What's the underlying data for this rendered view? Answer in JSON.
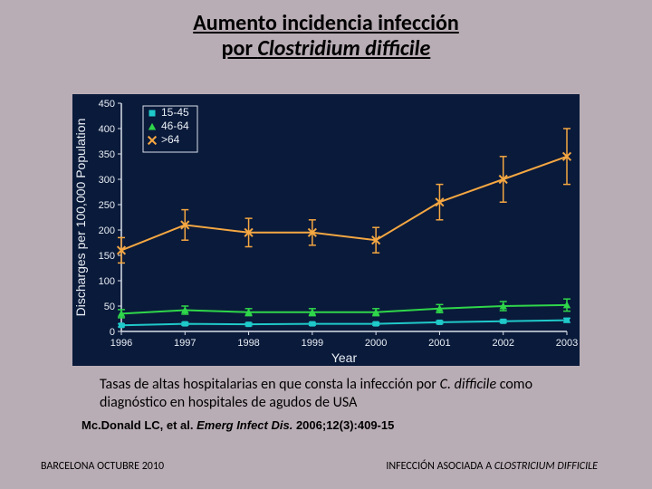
{
  "title_line1": "Aumento incidencia infección",
  "title_line2": "por ",
  "title_italic": "Clostridium difficile",
  "caption_pre": "Tasas de altas hospitalarias en que consta la infección por ",
  "caption_em": "C. difficile",
  "caption_post": " como diagnóstico en hospitales de agudos de USA",
  "citation_pre": "Mc.Donald LC, et al. ",
  "citation_em": "Emerg Infect Dis.",
  "citation_post": " 2006;12(3):409-15",
  "footer_left": "BARCELONA OCTUBRE 2010",
  "footer_right_pre": "INFECCIÓN ASOCIADA A ",
  "footer_right_em": "CLOSTRICIUM DIFFICILE",
  "chart": {
    "type": "line-errorbar",
    "background_color": "#0a1a3a",
    "plot_bg": "#0a1a3a",
    "axis_color": "#d9e0ea",
    "tick_color": "#d9e0ea",
    "xlabel": "Year",
    "ylabel": "Discharges per 100,000 Population",
    "label_fontsize": 14,
    "tick_fontsize": 11,
    "x_categories": [
      "1996",
      "1997",
      "1998",
      "1999",
      "2000",
      "2001",
      "2002",
      "2003"
    ],
    "ylim": [
      0,
      450
    ],
    "ytick_step": 50,
    "yticks": [
      0,
      50,
      100,
      150,
      200,
      250,
      300,
      350,
      400,
      450
    ],
    "legend": {
      "position": "top-left-inside",
      "border_color": "#d9e0ea",
      "items": [
        {
          "label": "15-45",
          "marker": "square",
          "color": "#1fc9c9"
        },
        {
          "label": "46-64",
          "marker": "triangle",
          "color": "#2fd64a"
        },
        {
          "label": ">64",
          "marker": "x",
          "color": "#f4a742"
        }
      ]
    },
    "series": [
      {
        "name": "15-45",
        "color": "#1fc9c9",
        "marker": "square",
        "marker_size": 6,
        "line_width": 2,
        "y": [
          12,
          15,
          14,
          15,
          15,
          18,
          20,
          22
        ],
        "err": [
          3,
          3,
          3,
          3,
          3,
          3,
          3,
          4
        ]
      },
      {
        "name": "46-64",
        "color": "#2fd64a",
        "marker": "triangle",
        "marker_size": 7,
        "line_width": 2,
        "y": [
          35,
          42,
          38,
          38,
          38,
          45,
          50,
          52
        ],
        "err": [
          8,
          8,
          7,
          7,
          7,
          8,
          9,
          12
        ]
      },
      {
        "name": ">64",
        "color": "#f4a742",
        "marker": "x",
        "marker_size": 7,
        "line_width": 2,
        "y": [
          160,
          210,
          195,
          195,
          180,
          255,
          300,
          345
        ],
        "err": [
          25,
          30,
          28,
          25,
          25,
          35,
          45,
          55
        ]
      }
    ]
  }
}
